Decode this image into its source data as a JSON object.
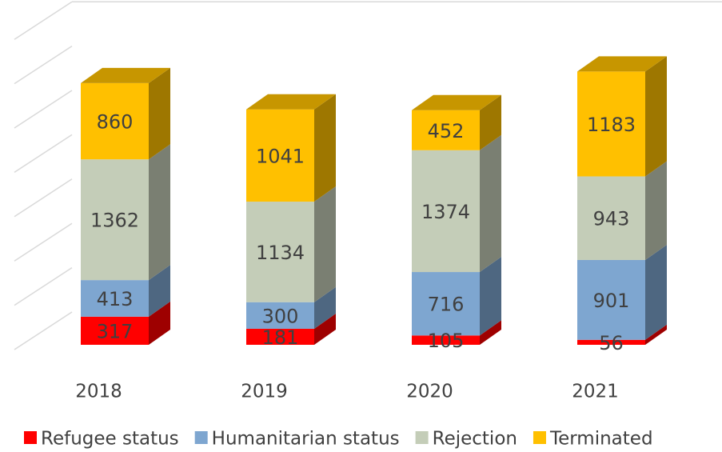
{
  "chart_data": {
    "type": "bar3d_stacked",
    "categories": [
      "2018",
      "2019",
      "2020",
      "2021"
    ],
    "series": [
      {
        "name": "Refugee status",
        "color": "#ff0000",
        "values": [
          317,
          181,
          105,
          56
        ]
      },
      {
        "name": "Humanitarian status",
        "color": "#7ea6d0",
        "values": [
          413,
          300,
          716,
          901
        ]
      },
      {
        "name": "Rejection",
        "color": "#c4cdb8",
        "values": [
          1362,
          1134,
          1374,
          943
        ]
      },
      {
        "name": "Terminated",
        "color": "#ffc000",
        "values": [
          860,
          1041,
          452,
          1183
        ]
      }
    ],
    "ylim": [
      0,
      3500
    ],
    "yticks": [
      0,
      500,
      1000,
      1500,
      2000,
      2500,
      3000,
      3500
    ],
    "grid": true,
    "legend": "bottom"
  }
}
